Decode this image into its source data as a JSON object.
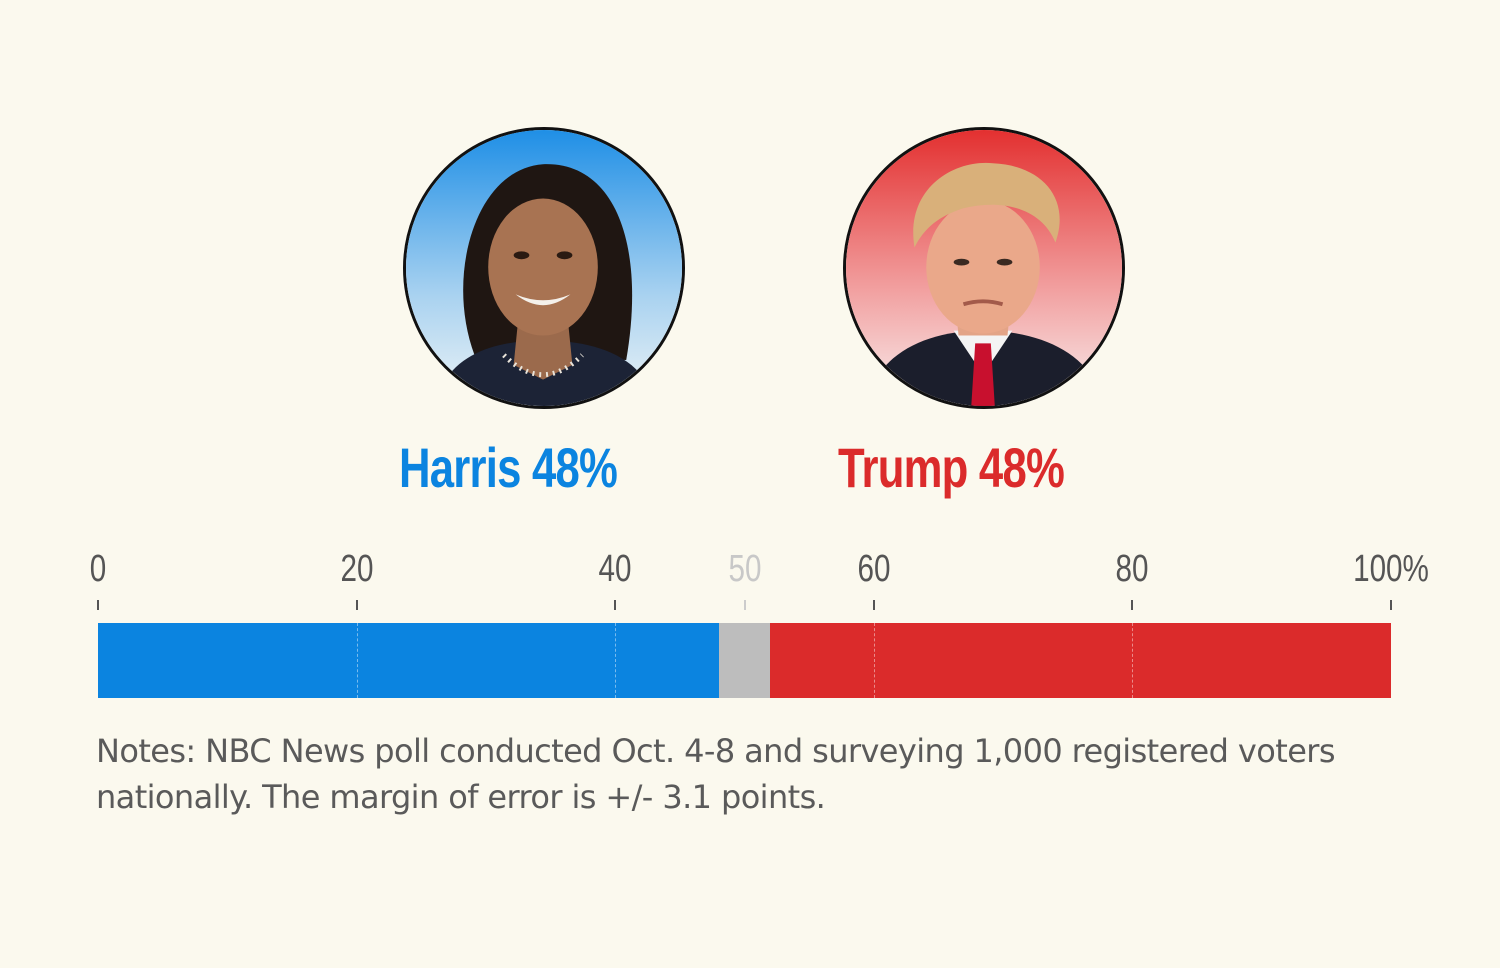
{
  "colors": {
    "harris": "#0b84e0",
    "trump": "#db2b2b",
    "undecided": "#bdbdbd",
    "background": "#fbf9ee"
  },
  "candidates": [
    {
      "name": "Harris",
      "percent_label": "48%",
      "label": "Harris 48%",
      "portrait_bg": "#1f8fe6"
    },
    {
      "name": "Trump",
      "percent_label": "48%",
      "label": "Trump 48%",
      "portrait_bg": "#e33030"
    }
  ],
  "chart_data": {
    "type": "bar",
    "orientation": "horizontal-stacked",
    "xlim": [
      0,
      100
    ],
    "ticks": [
      "0",
      "20",
      "40",
      "50",
      "60",
      "80",
      "100%"
    ],
    "tick_values": [
      0,
      20,
      40,
      50,
      60,
      80,
      100
    ],
    "muted_ticks": [
      "50"
    ],
    "grid": true,
    "series": [
      {
        "name": "Harris",
        "value": 48,
        "color": "#0b84e0"
      },
      {
        "name": "",
        "value": 4,
        "color": "#bdbdbd"
      },
      {
        "name": "Trump",
        "value": 48,
        "color": "#db2b2b"
      }
    ]
  },
  "notes": "Notes: NBC News poll conducted Oct. 4-8 and surveying 1,000 registered voters nationally. The margin of error is +/- 3.1 points."
}
